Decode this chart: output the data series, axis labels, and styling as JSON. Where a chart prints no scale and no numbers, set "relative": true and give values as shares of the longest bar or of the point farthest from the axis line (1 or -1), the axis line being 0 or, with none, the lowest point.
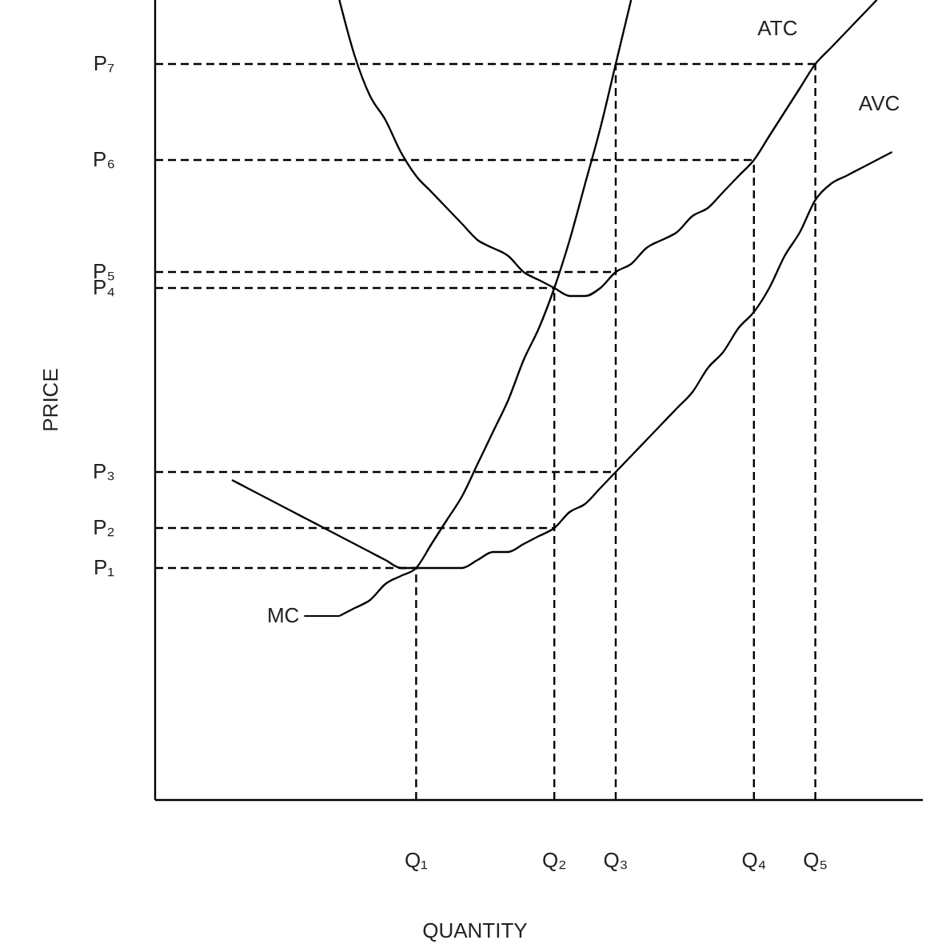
{
  "chart_data": {
    "type": "line",
    "relative": true,
    "xlabel": "QUANTITY",
    "ylabel": "PRICE",
    "categories": [
      null,
      null,
      null,
      null,
      null,
      null,
      null,
      null,
      null,
      null,
      null,
      null,
      null,
      null,
      null,
      null,
      null,
      "Q₁",
      null,
      null,
      null,
      null,
      null,
      null,
      null,
      null,
      "Q₂",
      null,
      null,
      null,
      "Q₃",
      null,
      null,
      null,
      null,
      null,
      null,
      null,
      null,
      "Q₄",
      null,
      null,
      null,
      "Q₅",
      null,
      null,
      null,
      null,
      null,
      null,
      null
    ],
    "ref_lines": [
      {
        "axis": "x",
        "value": "Q₁",
        "color": "#000000",
        "line_style": "dashed"
      },
      {
        "axis": "x",
        "value": "Q₂",
        "color": "#000000",
        "line_style": "dashed"
      },
      {
        "axis": "x",
        "value": "Q₃",
        "color": "#000000",
        "line_style": "dashed"
      },
      {
        "axis": "x",
        "value": "Q₄",
        "color": "#000000",
        "line_style": "dashed"
      },
      {
        "axis": "x",
        "value": "Q₅",
        "color": "#000000",
        "line_style": "dashed"
      }
    ],
    "series": [
      {
        "name": "MC",
        "color": "#000000",
        "line_style": "solid",
        "values": [
          null,
          null,
          null,
          null,
          null,
          null,
          null,
          null,
          null,
          null,
          null,
          null,
          0.23,
          0.24,
          0.25,
          0.27,
          0.28,
          0.29,
          0.32,
          0.35,
          0.38,
          0.42,
          0.46,
          0.5,
          0.55,
          0.59,
          0.64,
          0.7,
          0.77,
          0.84,
          0.92,
          1,
          null,
          null,
          null,
          null,
          null,
          null,
          null,
          null,
          null,
          null,
          null,
          null,
          null,
          null,
          null,
          null,
          null,
          null,
          null
        ]
      },
      {
        "name": "ATC",
        "color": "#000000",
        "line_style": "solid",
        "values": [
          null,
          null,
          null,
          null,
          null,
          null,
          null,
          null,
          null,
          null,
          null,
          null,
          1,
          0.93,
          0.88,
          0.85,
          0.81,
          0.78,
          0.76,
          0.74,
          0.72,
          0.7,
          0.69,
          0.68,
          0.66,
          0.65,
          0.64,
          0.63,
          0.63,
          0.64,
          0.66,
          0.67,
          0.69,
          0.7,
          0.71,
          0.73,
          0.74,
          0.76,
          0.78,
          0.8,
          0.83,
          0.86,
          0.89,
          0.92,
          0.94,
          0.96,
          0.98,
          1,
          null,
          null,
          null
        ]
      },
      {
        "name": "AVC",
        "color": "#000000",
        "line_style": "solid",
        "values": [
          null,
          null,
          null,
          null,
          null,
          0.4,
          0.39,
          0.38,
          0.37,
          0.36,
          0.35,
          0.34,
          0.33,
          0.32,
          0.31,
          0.3,
          0.29,
          0.29,
          0.29,
          0.29,
          0.29,
          0.3,
          0.31,
          0.31,
          0.32,
          0.33,
          0.34,
          0.36,
          0.37,
          0.39,
          0.41,
          0.43,
          0.45,
          0.47,
          0.49,
          0.51,
          0.54,
          0.56,
          0.59,
          0.61,
          0.64,
          0.68,
          0.71,
          0.75,
          0.77,
          0.78,
          0.79,
          0.8,
          0.81,
          null,
          null
        ]
      },
      {
        "name": "P₇",
        "color": "#000000",
        "line_style": "dashed",
        "values": [
          0.92,
          0.92,
          0.92,
          0.92,
          0.92,
          0.92,
          0.92,
          0.92,
          0.92,
          0.92,
          0.92,
          0.92,
          0.92,
          0.92,
          0.92,
          0.92,
          0.92,
          0.92,
          0.92,
          0.92,
          0.92,
          0.92,
          0.92,
          0.92,
          0.92,
          0.92,
          0.92,
          0.92,
          0.92,
          0.92,
          0.92,
          0.92,
          0.92,
          0.92,
          0.92,
          0.92,
          0.92,
          0.92,
          0.92,
          0.92,
          0.92,
          0.92,
          0.92,
          0.92,
          null,
          null,
          null,
          null,
          null,
          null,
          null
        ]
      },
      {
        "name": "P₆",
        "color": "#000000",
        "line_style": "dashed",
        "values": [
          0.8,
          0.8,
          0.8,
          0.8,
          0.8,
          0.8,
          0.8,
          0.8,
          0.8,
          0.8,
          0.8,
          0.8,
          0.8,
          0.8,
          0.8,
          0.8,
          0.8,
          0.8,
          0.8,
          0.8,
          0.8,
          0.8,
          0.8,
          0.8,
          0.8,
          0.8,
          0.8,
          0.8,
          0.8,
          0.8,
          0.8,
          0.8,
          0.8,
          0.8,
          0.8,
          0.8,
          0.8,
          0.8,
          0.8,
          0.8,
          null,
          null,
          null,
          null,
          null,
          null,
          null,
          null,
          null,
          null,
          null
        ]
      },
      {
        "name": "P₅",
        "color": "#000000",
        "line_style": "dashed",
        "values": [
          0.66,
          0.66,
          0.66,
          0.66,
          0.66,
          0.66,
          0.66,
          0.66,
          0.66,
          0.66,
          0.66,
          0.66,
          0.66,
          0.66,
          0.66,
          0.66,
          0.66,
          0.66,
          0.66,
          0.66,
          0.66,
          0.66,
          0.66,
          0.66,
          0.66,
          0.66,
          0.66,
          0.66,
          0.66,
          0.66,
          0.66,
          null,
          null,
          null,
          null,
          null,
          null,
          null,
          null,
          null,
          null,
          null,
          null,
          null,
          null,
          null,
          null,
          null,
          null,
          null,
          null
        ]
      },
      {
        "name": "P₄",
        "color": "#000000",
        "line_style": "dashed",
        "values": [
          0.64,
          0.64,
          0.64,
          0.64,
          0.64,
          0.64,
          0.64,
          0.64,
          0.64,
          0.64,
          0.64,
          0.64,
          0.64,
          0.64,
          0.64,
          0.64,
          0.64,
          0.64,
          0.64,
          0.64,
          0.64,
          0.64,
          0.64,
          0.64,
          0.64,
          0.64,
          0.64,
          null,
          null,
          null,
          null,
          null,
          null,
          null,
          null,
          null,
          null,
          null,
          null,
          null,
          null,
          null,
          null,
          null,
          null,
          null,
          null,
          null,
          null,
          null,
          null
        ]
      },
      {
        "name": "P₃",
        "color": "#000000",
        "line_style": "dashed",
        "values": [
          0.41,
          0.41,
          0.41,
          0.41,
          0.41,
          0.41,
          0.41,
          0.41,
          0.41,
          0.41,
          0.41,
          0.41,
          0.41,
          0.41,
          0.41,
          0.41,
          0.41,
          0.41,
          0.41,
          0.41,
          0.41,
          0.41,
          0.41,
          0.41,
          0.41,
          0.41,
          0.41,
          0.41,
          0.41,
          0.41,
          0.41,
          null,
          null,
          null,
          null,
          null,
          null,
          null,
          null,
          null,
          null,
          null,
          null,
          null,
          null,
          null,
          null,
          null,
          null,
          null,
          null
        ]
      },
      {
        "name": "P₂",
        "color": "#000000",
        "line_style": "dashed",
        "values": [
          0.34,
          0.34,
          0.34,
          0.34,
          0.34,
          0.34,
          0.34,
          0.34,
          0.34,
          0.34,
          0.34,
          0.34,
          0.34,
          0.34,
          0.34,
          0.34,
          0.34,
          0.34,
          0.34,
          0.34,
          0.34,
          0.34,
          0.34,
          0.34,
          0.34,
          0.34,
          0.34,
          null,
          null,
          null,
          null,
          null,
          null,
          null,
          null,
          null,
          null,
          null,
          null,
          null,
          null,
          null,
          null,
          null,
          null,
          null,
          null,
          null,
          null,
          null,
          null
        ]
      },
      {
        "name": "P₁",
        "color": "#000000",
        "line_style": "dashed",
        "values": [
          0.29,
          0.29,
          0.29,
          0.29,
          0.29,
          0.29,
          0.29,
          0.29,
          0.29,
          0.29,
          0.29,
          0.29,
          0.29,
          0.29,
          0.29,
          0.29,
          0.29,
          0.29,
          null,
          null,
          null,
          null,
          null,
          null,
          null,
          null,
          null,
          null,
          null,
          null,
          null,
          null,
          null,
          null,
          null,
          null,
          null,
          null,
          null,
          null,
          null,
          null,
          null,
          null,
          null,
          null,
          null,
          null,
          null,
          null,
          null
        ]
      }
    ]
  }
}
